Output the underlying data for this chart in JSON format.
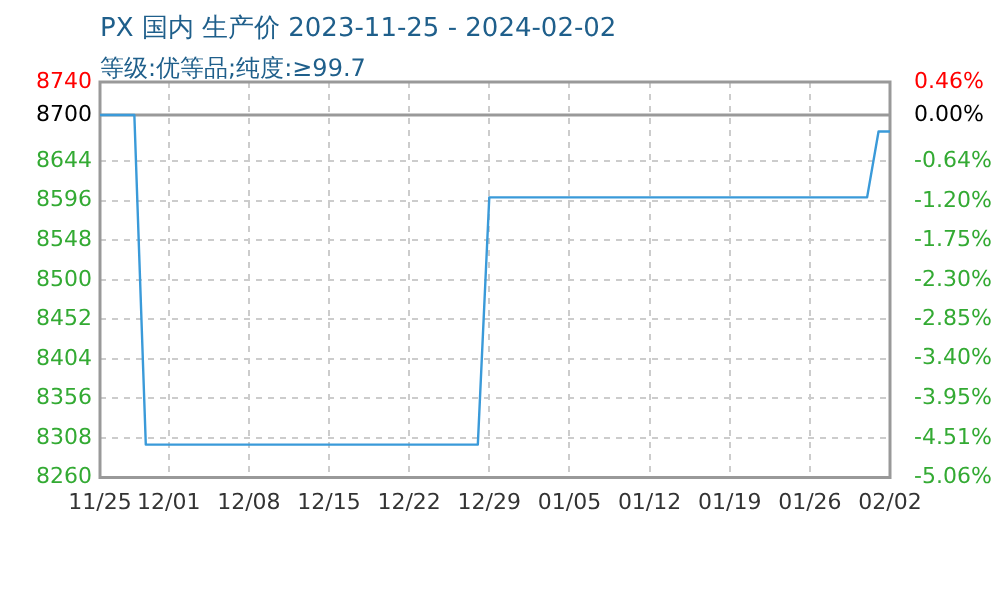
{
  "chart_data": {
    "type": "line",
    "title": "PX 国内 生产价 2023-11-25 - 2024-02-02",
    "subtitle": "等级:优等品;纯度:≥99.7",
    "series": [
      {
        "color": "#3a9ad9",
        "x": [
          "2023-11-25",
          "2023-11-28",
          "2023-11-29",
          "2023-12-28",
          "2023-12-29",
          "2024-01-31",
          "2024-02-01",
          "2024-02-02"
        ],
        "values": [
          8700,
          8700,
          8300,
          8300,
          8600,
          8600,
          8680,
          8680
        ]
      }
    ],
    "xlim": [
      "2023-11-25",
      "2024-02-02"
    ],
    "xticks": [
      {
        "value": "2023-11-25",
        "label": "11/25"
      },
      {
        "value": "2023-12-01",
        "label": "12/01"
      },
      {
        "value": "2023-12-08",
        "label": "12/08"
      },
      {
        "value": "2023-12-15",
        "label": "12/15"
      },
      {
        "value": "2023-12-22",
        "label": "12/22"
      },
      {
        "value": "2023-12-29",
        "label": "12/29"
      },
      {
        "value": "2024-01-05",
        "label": "01/05"
      },
      {
        "value": "2024-01-12",
        "label": "01/12"
      },
      {
        "value": "2024-01-19",
        "label": "01/19"
      },
      {
        "value": "2024-01-26",
        "label": "01/26"
      },
      {
        "value": "2024-02-02",
        "label": "02/02"
      }
    ],
    "ylim": [
      8260,
      8740
    ],
    "yticks": [
      8260,
      8308,
      8356,
      8404,
      8452,
      8500,
      8548,
      8596,
      8644,
      8700,
      8740
    ],
    "y2lim": [
      -5.06,
      0.46
    ],
    "y2ticks": [
      {
        "value": -5.06,
        "label": "-5.06%"
      },
      {
        "value": -4.51,
        "label": "-4.51%"
      },
      {
        "value": -3.95,
        "label": "-3.95%"
      },
      {
        "value": -3.4,
        "label": "-3.40%"
      },
      {
        "value": -2.85,
        "label": "-2.85%"
      },
      {
        "value": -2.3,
        "label": "-2.30%"
      },
      {
        "value": -1.75,
        "label": "-1.75%"
      },
      {
        "value": -1.2,
        "label": "-1.20%"
      },
      {
        "value": -0.64,
        "label": "-0.64%"
      },
      {
        "value": 0,
        "label": "0.00%"
      },
      {
        "value": 0.46,
        "label": "0.46%"
      }
    ],
    "ref_lines": [
      {
        "axis": "y",
        "value": 8700,
        "color": "#999999"
      }
    ],
    "grid": true,
    "legend": false,
    "marker": "none",
    "line_style": "solid"
  }
}
